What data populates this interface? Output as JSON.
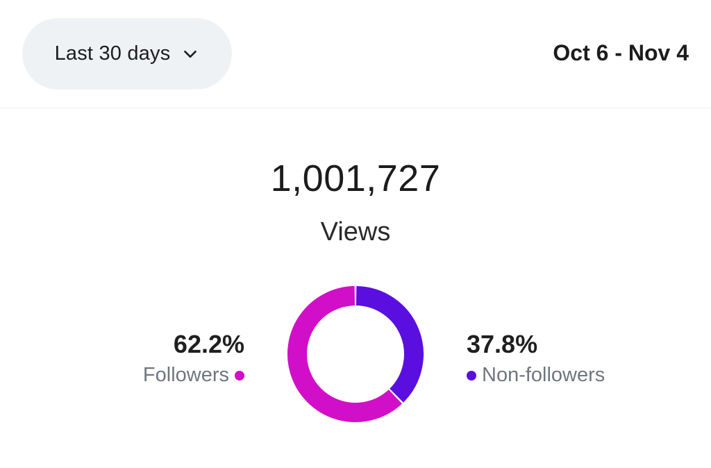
{
  "header": {
    "range_selector": "Last 30 days",
    "date_range": "Oct 6 - Nov 4"
  },
  "summary": {
    "total": "1,001,727",
    "label": "Views"
  },
  "breakdown": {
    "followers": {
      "percent": "62.2%",
      "label": "Followers",
      "color": "#d10fc8"
    },
    "non_followers": {
      "percent": "37.8%",
      "label": "Non-followers",
      "color": "#5a0fe0"
    }
  },
  "chart_data": {
    "type": "pie",
    "categories": [
      "Followers",
      "Non-followers"
    ],
    "values": [
      62.2,
      37.8
    ],
    "colors": [
      "#d10fc8",
      "#5a0fe0"
    ]
  },
  "icons": {
    "dropdown": "chevron-down-icon"
  }
}
